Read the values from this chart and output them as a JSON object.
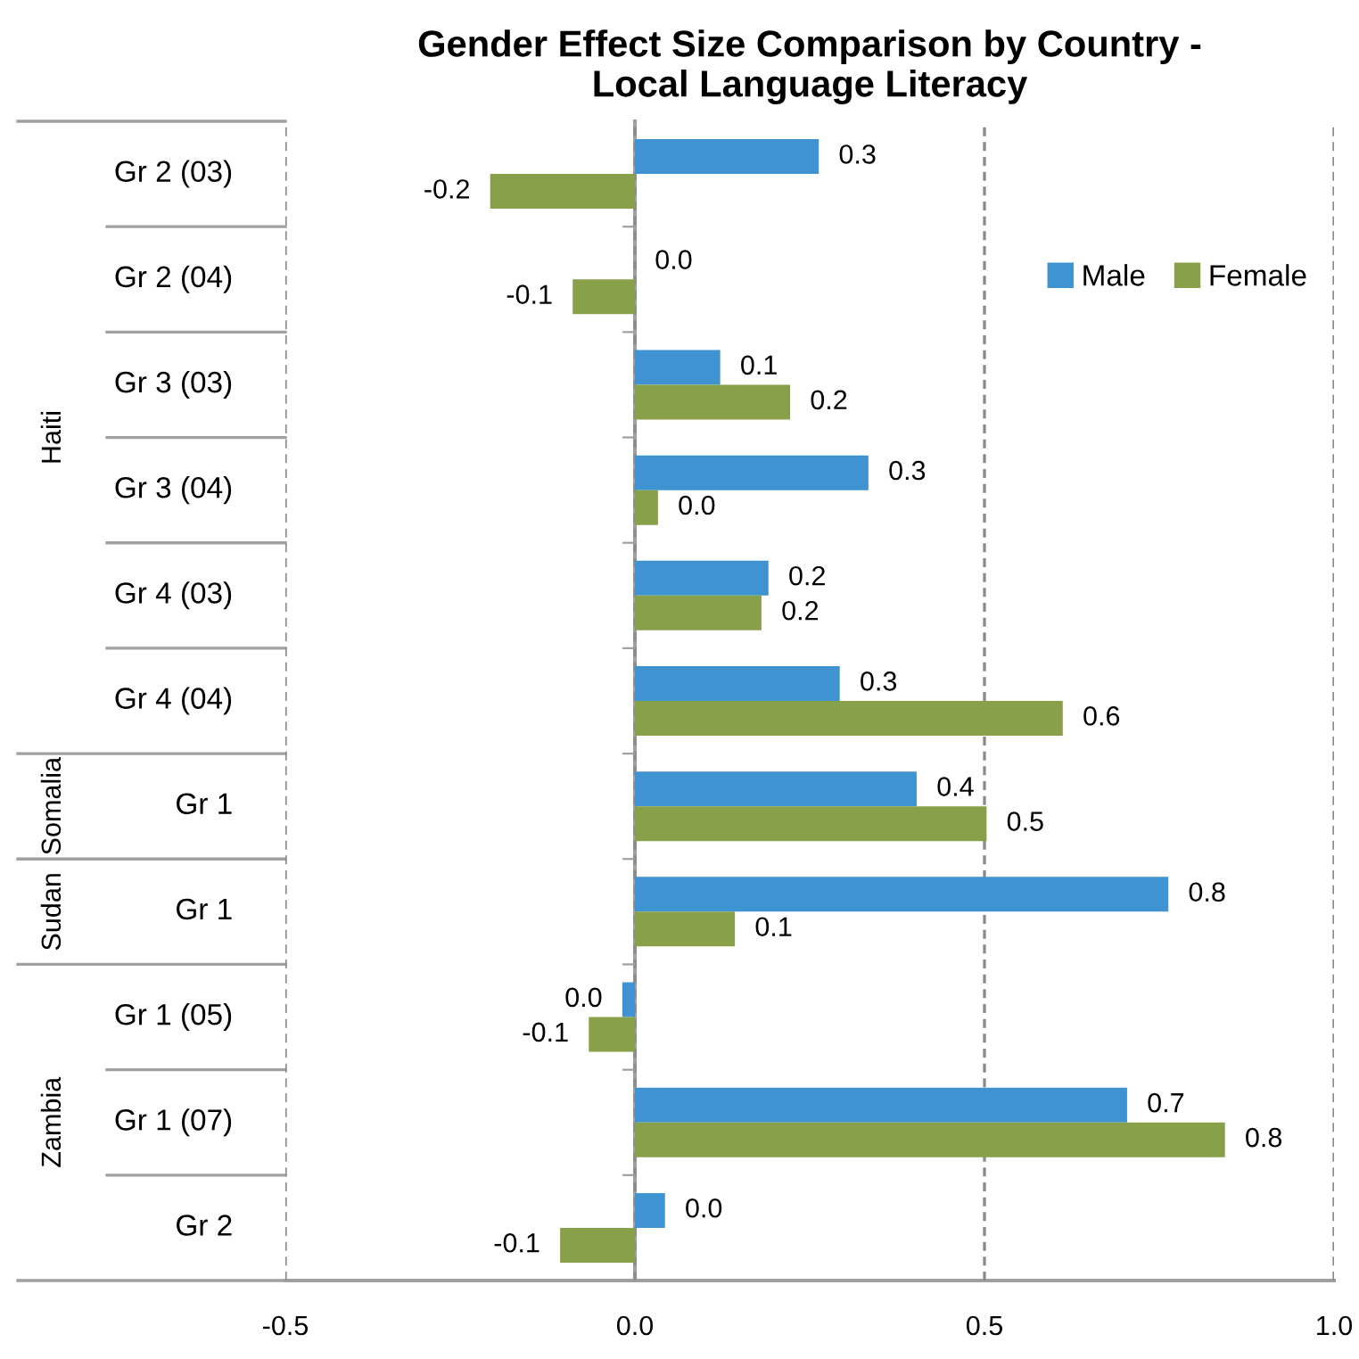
{
  "chart_data": {
    "type": "bar",
    "orientation": "horizontal",
    "title": "Gender Effect Size Comparison by Country -\nLocal Language Literacy",
    "categories": [
      "Gr 2 (03)",
      "Gr 2 (04)",
      "Gr 3 (03)",
      "Gr 3 (04)",
      "Gr 4 (03)",
      "Gr 4 (04)",
      "Gr 1",
      "Gr 1",
      "Gr 1 (05)",
      "Gr 1 (07)",
      "Gr 2"
    ],
    "series": [
      {
        "name": "Male",
        "color": "#3f93d0",
        "values": [
          0.263,
          0.0,
          0.122,
          0.334,
          0.191,
          0.293,
          0.403,
          0.763,
          -0.018,
          0.704,
          0.043
        ],
        "value_labels": [
          "0.3",
          "0.0",
          "0.1",
          "0.3",
          "0.2",
          "0.3",
          "0.4",
          "0.8",
          "0.0",
          "0.7",
          "0.0"
        ]
      },
      {
        "name": "Female",
        "color": "#89a04b",
        "values": [
          -0.207,
          -0.089,
          0.222,
          0.033,
          0.181,
          0.612,
          0.503,
          0.143,
          -0.066,
          0.844,
          -0.107
        ],
        "value_labels": [
          "-0.2",
          "-0.1",
          "0.2",
          "0.0",
          "0.2",
          "0.6",
          "0.5",
          "0.1",
          "-0.1",
          "0.8",
          "-0.1"
        ]
      }
    ],
    "annotations": [
      "Haiti",
      "Somalia",
      "Sudan",
      "Zambia"
    ],
    "xlim": [
      -0.5,
      1.0
    ],
    "xticks": [
      {
        "value": -0.5,
        "label": "-0.5"
      },
      {
        "value": 0.0,
        "label": "0.0"
      },
      {
        "value": 0.5,
        "label": "0.5"
      },
      {
        "value": 1.0,
        "label": "1.0"
      }
    ],
    "grid": "x",
    "legend": "top right"
  }
}
